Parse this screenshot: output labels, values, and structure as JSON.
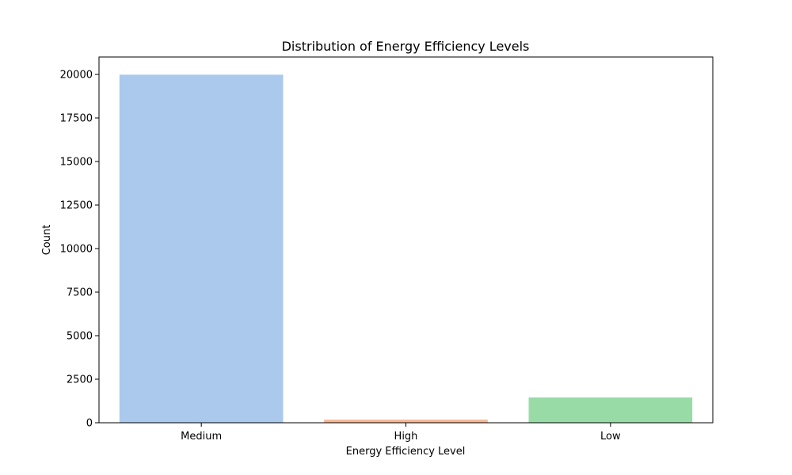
{
  "chart_data": {
    "type": "bar",
    "title": "Distribution of Energy Efficiency Levels",
    "xlabel": "Energy Efficiency Level",
    "ylabel": "Count",
    "categories": [
      "Medium",
      "High",
      "Low"
    ],
    "values": [
      19985,
      180,
      1450
    ],
    "colors": [
      "#abc9ed",
      "#f5b996",
      "#99dba7"
    ],
    "ylim": [
      0,
      21000
    ],
    "yticks": [
      0,
      2500,
      5000,
      7500,
      10000,
      12500,
      15000,
      17500,
      20000
    ],
    "ytick_labels": [
      "0",
      "2500",
      "5000",
      "7500",
      "10000",
      "12500",
      "15000",
      "17500",
      "20000"
    ],
    "grid": false,
    "legend": "none"
  }
}
